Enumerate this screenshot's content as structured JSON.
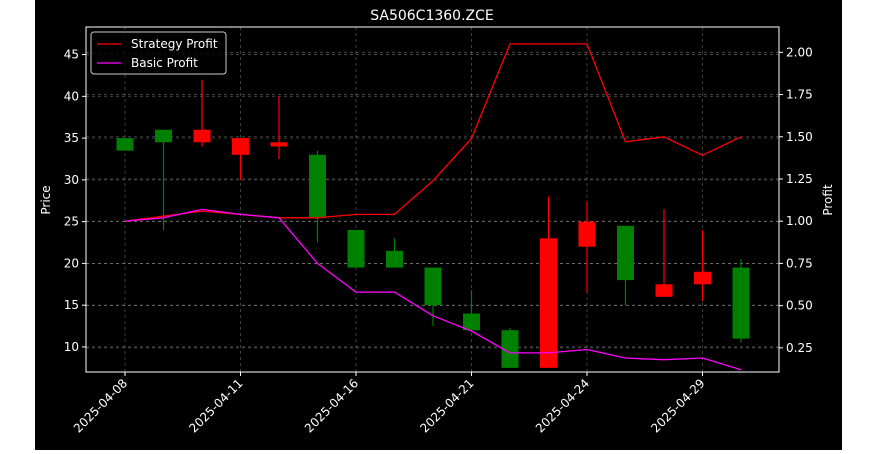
{
  "chart_data": {
    "type": "candlestick",
    "title": "SA506C1360.ZCE",
    "ylabel": "Price",
    "y2label": "Profit",
    "ylim": [
      7,
      48.3
    ],
    "y2lim": [
      0.107,
      2.15
    ],
    "yticks": [
      "10",
      "15",
      "20",
      "25",
      "30",
      "35",
      "40",
      "45"
    ],
    "y2ticks": [
      "0.25",
      "0.50",
      "0.75",
      "1.00",
      "1.25",
      "1.50",
      "1.75",
      "2.00"
    ],
    "xticks": [
      "2025-04-08",
      "2025-04-11",
      "2025-04-16",
      "2025-04-21",
      "2025-04-24",
      "2025-04-29"
    ],
    "grid": true,
    "legend_position": "top-left",
    "colors": {
      "up": "#008000",
      "down": "#ff0000",
      "strategy": "#ff0000",
      "basic": "#ff00ff",
      "background": "#000000",
      "axes": "#ffffff"
    },
    "candles": [
      {
        "date": "2025-04-08",
        "open": 33.5,
        "close": 35.0,
        "high": 35.0,
        "low": 33.5
      },
      {
        "date": "2025-04-09",
        "open": 34.5,
        "close": 36.0,
        "high": 36.0,
        "low": 24.0
      },
      {
        "date": "2025-04-10",
        "open": 36.0,
        "close": 34.5,
        "high": 42.0,
        "low": 34.0
      },
      {
        "date": "2025-04-11",
        "open": 35.0,
        "close": 33.0,
        "high": 35.0,
        "low": 30.0
      },
      {
        "date": "2025-04-14",
        "open": 34.5,
        "close": 34.0,
        "high": 40.0,
        "low": 32.5
      },
      {
        "date": "2025-04-15",
        "open": 25.5,
        "close": 33.0,
        "high": 33.5,
        "low": 22.5
      },
      {
        "date": "2025-04-16",
        "open": 19.5,
        "close": 24.0,
        "high": 24.0,
        "low": 19.5
      },
      {
        "date": "2025-04-17",
        "open": 19.5,
        "close": 21.5,
        "high": 23.0,
        "low": 19.5
      },
      {
        "date": "2025-04-18",
        "open": 15.0,
        "close": 19.5,
        "high": 19.5,
        "low": 12.5
      },
      {
        "date": "2025-04-21",
        "open": 12.0,
        "close": 14.0,
        "high": 16.8,
        "low": 12.0
      },
      {
        "date": "2025-04-22",
        "open": 7.5,
        "close": 12.0,
        "high": 12.3,
        "low": 7.5
      },
      {
        "date": "2025-04-23",
        "open": 23.0,
        "close": 7.5,
        "high": 28.0,
        "low": 7.5
      },
      {
        "date": "2025-04-24",
        "open": 25.0,
        "close": 22.0,
        "high": 27.5,
        "low": 16.5
      },
      {
        "date": "2025-04-25",
        "open": 18.0,
        "close": 24.5,
        "high": 24.5,
        "low": 15.0
      },
      {
        "date": "2025-04-28",
        "open": 17.5,
        "close": 16.0,
        "high": 26.5,
        "low": 16.0
      },
      {
        "date": "2025-04-29",
        "open": 19.0,
        "close": 17.5,
        "high": 24.0,
        "low": 15.5
      },
      {
        "date": "2025-04-30",
        "open": 11.0,
        "close": 19.5,
        "high": 20.5,
        "low": 10.5
      }
    ],
    "series": [
      {
        "name": "Strategy Profit",
        "axis": "right",
        "values": [
          1.0,
          1.03,
          1.06,
          1.04,
          1.02,
          1.02,
          1.04,
          1.04,
          1.24,
          1.49,
          2.05,
          2.05,
          2.05,
          1.47,
          1.5,
          1.39,
          1.5
        ]
      },
      {
        "name": "Basic Profit",
        "axis": "right",
        "values": [
          1.0,
          1.02,
          1.07,
          1.04,
          1.02,
          0.75,
          0.58,
          0.58,
          0.44,
          0.35,
          0.22,
          0.22,
          0.24,
          0.19,
          0.18,
          0.19,
          0.12
        ]
      }
    ]
  }
}
